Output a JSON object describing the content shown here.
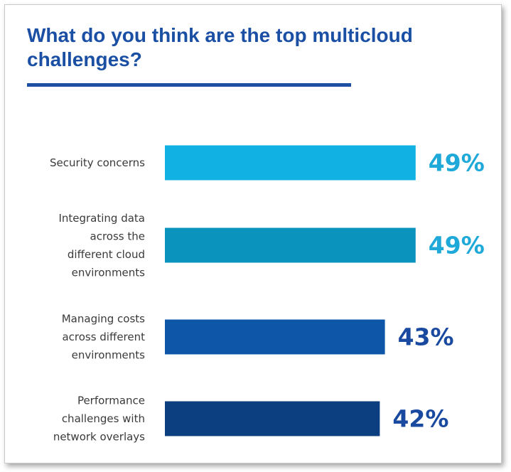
{
  "chart_data": {
    "type": "bar",
    "orientation": "horizontal",
    "title": "What do you think are the top multicloud challenges?",
    "categories": [
      "Security concerns",
      "Integrating data across the different cloud environments",
      "Managing costs across different environments",
      "Performance challenges with network overlays"
    ],
    "category_lines": [
      [
        "Security concerns"
      ],
      [
        "Integrating data",
        "across the",
        "different cloud",
        "environments"
      ],
      [
        "Managing costs",
        "across different",
        "environments"
      ],
      [
        "Performance",
        "challenges with",
        "network overlays"
      ]
    ],
    "values": [
      49,
      49,
      43,
      42
    ],
    "value_labels": [
      "49%",
      "49%",
      "43%",
      "42%"
    ],
    "unit": "%",
    "bar_colors": [
      "#12b1e3",
      "#0a94bd",
      "#0e56a8",
      "#0c3f7f"
    ],
    "label_colors": [
      "#1fa9d9",
      "#1fa9d9",
      "#1a4aa0",
      "#1a4aa0"
    ],
    "legend": "none",
    "grid": false
  }
}
